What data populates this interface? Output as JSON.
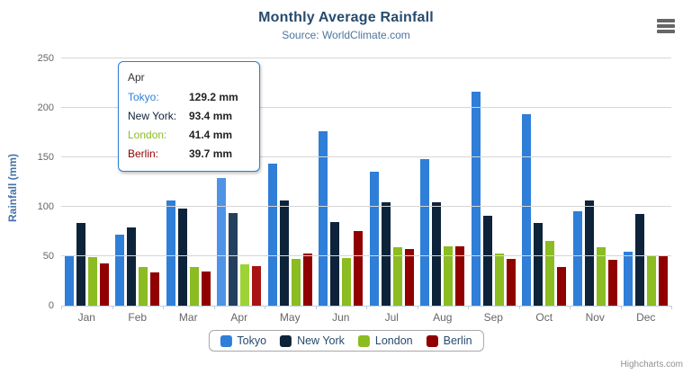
{
  "header": {
    "title": "Monthly Average Rainfall",
    "subtitle": "Source: WorldClimate.com"
  },
  "chart_data": {
    "type": "bar",
    "title": "Monthly Average Rainfall",
    "subtitle": "Source: WorldClimate.com",
    "categories": [
      "Jan",
      "Feb",
      "Mar",
      "Apr",
      "May",
      "Jun",
      "Jul",
      "Aug",
      "Sep",
      "Oct",
      "Nov",
      "Dec"
    ],
    "series": [
      {
        "name": "Tokyo",
        "color": "#2f7ed8",
        "hover_color": "#4e93e6",
        "values": [
          49.9,
          71.5,
          106.4,
          129.2,
          144.0,
          176.0,
          135.6,
          148.5,
          216.4,
          194.1,
          95.6,
          54.4
        ]
      },
      {
        "name": "New York",
        "color": "#0d233a",
        "hover_color": "#23405e",
        "values": [
          83.6,
          78.8,
          98.5,
          93.4,
          106.0,
          84.5,
          105.0,
          104.3,
          91.2,
          83.5,
          106.6,
          92.3
        ]
      },
      {
        "name": "London",
        "color": "#8bbc21",
        "hover_color": "#9ed336",
        "values": [
          48.9,
          38.8,
          39.3,
          41.4,
          47.0,
          48.3,
          59.0,
          59.6,
          52.4,
          65.2,
          59.3,
          51.2
        ]
      },
      {
        "name": "Berlin",
        "color": "#910000",
        "hover_color": "#a81414",
        "values": [
          42.4,
          33.2,
          34.5,
          39.7,
          52.6,
          75.5,
          57.4,
          60.4,
          47.6,
          39.1,
          46.8,
          51.1
        ]
      }
    ],
    "ylabel": "Rainfall (mm)",
    "ylim": [
      0,
      250
    ],
    "yticks": [
      0,
      50,
      100,
      150,
      200,
      250
    ],
    "grid": true,
    "legend_position": "bottom",
    "hovered_category": "Apr"
  },
  "tooltip": {
    "header": "Apr",
    "rows": [
      {
        "label": "Tokyo:",
        "value": "129.2 mm",
        "color": "#2f7ed8"
      },
      {
        "label": "New York:",
        "value": "93.4 mm",
        "color": "#0d233a"
      },
      {
        "label": "London:",
        "value": "41.4 mm",
        "color": "#8bbc21"
      },
      {
        "label": "Berlin:",
        "value": "39.7 mm",
        "color": "#910000"
      }
    ]
  },
  "credits": {
    "label": "Highcharts.com"
  }
}
